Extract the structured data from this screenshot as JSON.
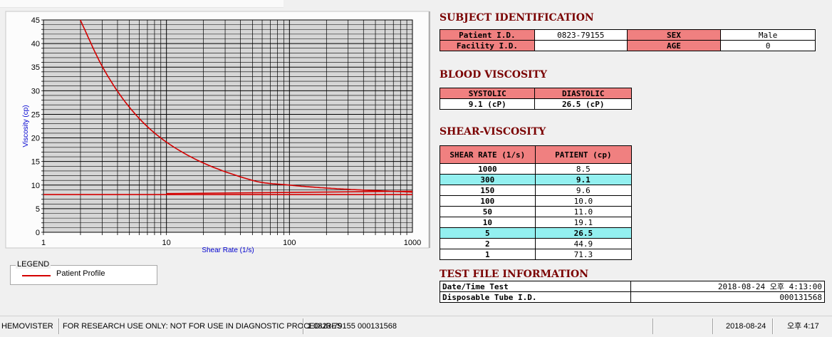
{
  "chart_data": {
    "type": "line",
    "xscale": "log",
    "xlim": [
      1,
      1000
    ],
    "ylim": [
      0,
      45
    ],
    "xlabel": "Shear Rate (1/s)",
    "ylabel": "Viscosity (cp)",
    "xticks": [
      1,
      10,
      100,
      1000
    ],
    "yticks": [
      0,
      5,
      10,
      15,
      20,
      25,
      30,
      35,
      40,
      45
    ],
    "grid": true,
    "series": [
      {
        "name": "Patient Profile",
        "color": "#d40000",
        "x": [
          2,
          3,
          5,
          10,
          50,
          100,
          150,
          300,
          1000
        ],
        "y": [
          44.9,
          35.2,
          26.5,
          19.1,
          11.0,
          10.0,
          9.6,
          9.1,
          8.5
        ]
      }
    ],
    "reference_lines": [
      {
        "color": "#d40000",
        "x": [
          1,
          10,
          1000
        ],
        "y": [
          8.0,
          8.0,
          8.0
        ]
      },
      {
        "color": "#d40000",
        "x": [
          10,
          1000
        ],
        "y": [
          8.2,
          8.7
        ]
      }
    ]
  },
  "legend": {
    "title": "LEGEND",
    "item_label": "Patient Profile"
  },
  "subject": {
    "title": "SUBJECT IDENTIFICATION",
    "patient_id_label": "Patient I.D.",
    "patient_id": "0823-79155",
    "sex_label": "SEX",
    "sex": "Male",
    "facility_id_label": "Facility I.D.",
    "facility_id": "",
    "age_label": "AGE",
    "age": "0"
  },
  "blood_viscosity": {
    "title": "BLOOD VISCOSITY",
    "systolic_label": "SYSTOLIC",
    "diastolic_label": "DIASTOLIC",
    "systolic": "9.1 (cP)",
    "diastolic": "26.5 (cP)"
  },
  "shear_viscosity": {
    "title": "SHEAR-VISCOSITY",
    "col1": "SHEAR RATE (1/s)",
    "col2": "PATIENT (cp)",
    "rows": [
      {
        "rate": "1000",
        "value": "8.5",
        "highlight": false
      },
      {
        "rate": "300",
        "value": "9.1",
        "highlight": true
      },
      {
        "rate": "150",
        "value": "9.6",
        "highlight": false
      },
      {
        "rate": "100",
        "value": "10.0",
        "highlight": false
      },
      {
        "rate": "50",
        "value": "11.0",
        "highlight": false
      },
      {
        "rate": "10",
        "value": "19.1",
        "highlight": false
      },
      {
        "rate": "5",
        "value": "26.5",
        "highlight": true
      },
      {
        "rate": "2",
        "value": "44.9",
        "highlight": false
      },
      {
        "rate": "1",
        "value": "71.3",
        "highlight": false
      }
    ]
  },
  "test_file": {
    "title": "TEST FILE INFORMATION",
    "datetime_label": "Date/Time Test",
    "datetime": "2018-08-24  오후 4:13:00",
    "tube_label": "Disposable Tube I.D.",
    "tube": "000131568"
  },
  "statusbar": {
    "app": "HEMOVISTER",
    "notice": "FOR RESEARCH USE ONLY: NOT FOR USE IN DIAGNOSTIC PROCEDURES",
    "record": "1  0823-79155  000131568",
    "date": "2018-08-24",
    "time": "오후 4:17"
  }
}
